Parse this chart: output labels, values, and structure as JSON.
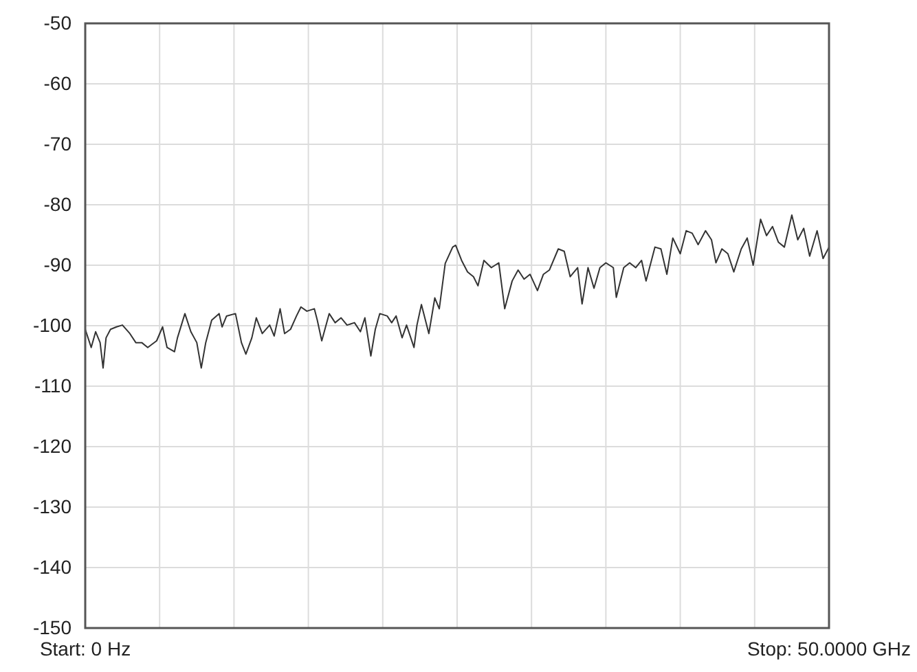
{
  "chart_data": {
    "type": "line",
    "xlim": [
      0,
      50
    ],
    "ylim": [
      -150,
      -50
    ],
    "xticks": [
      {
        "value": 0,
        "label": "Start: 0 Hz"
      },
      {
        "value": 5,
        "label": null
      },
      {
        "value": 10,
        "label": null
      },
      {
        "value": 15,
        "label": null
      },
      {
        "value": 20,
        "label": null
      },
      {
        "value": 25,
        "label": null
      },
      {
        "value": 30,
        "label": null
      },
      {
        "value": 35,
        "label": null
      },
      {
        "value": 40,
        "label": null
      },
      {
        "value": 45,
        "label": null
      },
      {
        "value": 50,
        "label": "Stop: 50.0000 GHz"
      }
    ],
    "yticks": [
      -150,
      -140,
      -130,
      -120,
      -110,
      -100,
      -90,
      -80,
      -70,
      -60,
      -50
    ],
    "grid": true,
    "marker": "none",
    "line_style": "solid",
    "series": [
      {
        "color": "#333333",
        "x": [
          0,
          0.4,
          0.7,
          1.0,
          1.2,
          1.4,
          1.7,
          2.1,
          2.5,
          3.0,
          3.4,
          3.8,
          4.2,
          4.8,
          5.2,
          5.5,
          6.0,
          6.2,
          6.7,
          7.1,
          7.5,
          7.8,
          8.1,
          8.5,
          9.0,
          9.2,
          9.5,
          10.1,
          10.5,
          10.8,
          11.2,
          11.5,
          11.9,
          12.4,
          12.7,
          13.1,
          13.4,
          13.8,
          14.2,
          14.5,
          14.9,
          15.4,
          15.6,
          15.9,
          16.4,
          16.8,
          17.2,
          17.6,
          18.1,
          18.5,
          18.8,
          19.2,
          19.5,
          19.8,
          20.3,
          20.6,
          20.9,
          21.3,
          21.6,
          22.1,
          22.3,
          22.6,
          23.1,
          23.5,
          23.8,
          24.2,
          24.7,
          24.9,
          25.3,
          25.7,
          26.1,
          26.4,
          26.8,
          27.3,
          27.8,
          28.2,
          28.7,
          29.1,
          29.5,
          29.9,
          30.4,
          30.8,
          31.2,
          31.8,
          32.2,
          32.6,
          33.1,
          33.4,
          33.8,
          34.2,
          34.6,
          35.0,
          35.5,
          35.7,
          36.2,
          36.6,
          37.0,
          37.4,
          37.7,
          38.3,
          38.7,
          39.1,
          39.5,
          40.0,
          40.4,
          40.8,
          41.2,
          41.7,
          42.1,
          42.4,
          42.8,
          43.2,
          43.6,
          44.1,
          44.5,
          44.9,
          45.4,
          45.8,
          46.2,
          46.6,
          47.0,
          47.5,
          47.9,
          48.3,
          48.7,
          49.2,
          49.6,
          50
        ],
        "values": [
          -100.6,
          -103.6,
          -101,
          -102.8,
          -107,
          -102,
          -100.6,
          -100.2,
          -99.9,
          -101.3,
          -102.8,
          -102.8,
          -103.6,
          -102.5,
          -100.2,
          -103.6,
          -104.3,
          -102,
          -98,
          -101,
          -102.8,
          -107,
          -102.8,
          -99.1,
          -98,
          -100.2,
          -98.4,
          -98,
          -102.8,
          -104.7,
          -102,
          -98.7,
          -101.3,
          -99.9,
          -101.7,
          -97.2,
          -101.3,
          -100.6,
          -98.4,
          -96.9,
          -97.6,
          -97.2,
          -99.1,
          -102.5,
          -98,
          -99.5,
          -98.7,
          -99.9,
          -99.5,
          -101,
          -98.7,
          -105,
          -100.6,
          -98,
          -98.4,
          -99.5,
          -98.4,
          -102,
          -99.9,
          -103.6,
          -99.9,
          -96.5,
          -101.3,
          -95.4,
          -97.2,
          -89.7,
          -87,
          -86.7,
          -89.2,
          -91.1,
          -91.9,
          -93.4,
          -89.2,
          -90.4,
          -89.6,
          -97.2,
          -92.6,
          -90.8,
          -92.3,
          -91.5,
          -94.2,
          -91.5,
          -90.8,
          -87.3,
          -87.7,
          -91.9,
          -90.4,
          -96.4,
          -90.4,
          -93.8,
          -90.4,
          -89.6,
          -90.4,
          -95.3,
          -90.4,
          -89.6,
          -90.4,
          -89.2,
          -92.6,
          -87,
          -87.3,
          -91.5,
          -85.5,
          -88.1,
          -84.3,
          -84.7,
          -86.6,
          -84.3,
          -85.8,
          -89.6,
          -87.3,
          -88.1,
          -91.1,
          -87.3,
          -85.5,
          -90,
          -82.4,
          -85.1,
          -83.6,
          -86.2,
          -87,
          -81.7,
          -85.8,
          -83.9,
          -88.5,
          -84.3,
          -88.9,
          -87
        ]
      }
    ]
  }
}
